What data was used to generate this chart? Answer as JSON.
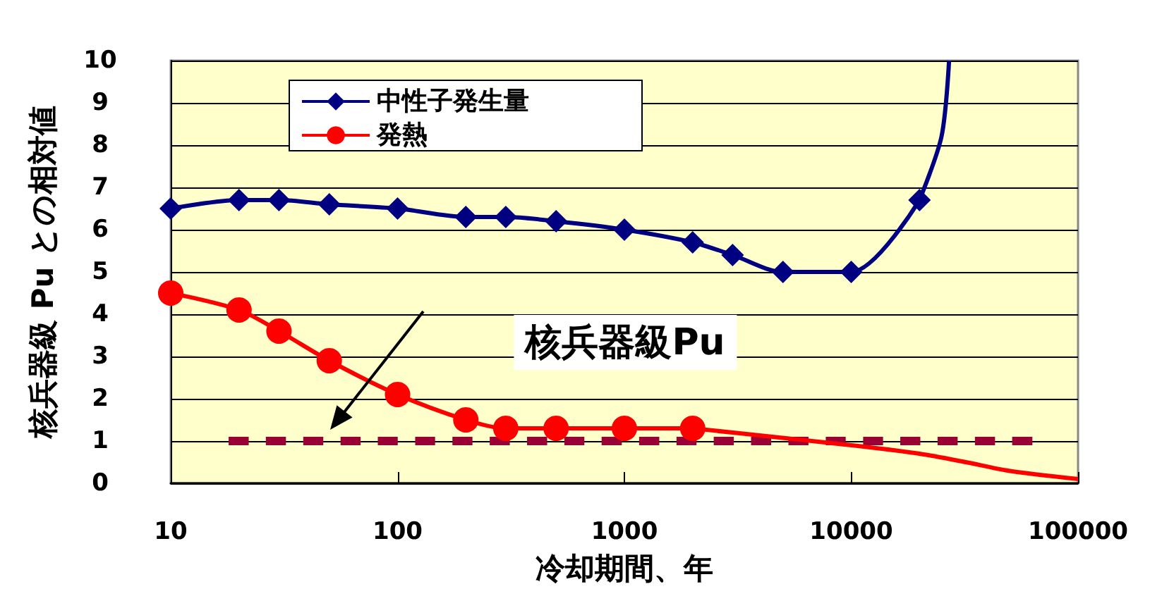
{
  "chart_data": {
    "type": "line",
    "xlabel": "冷却期間、年",
    "ylabel": "核兵器級 Pu との相対値",
    "log": "x",
    "xlim": [
      10,
      100000
    ],
    "xticks": [
      10,
      100,
      1000,
      10000,
      100000
    ],
    "ylim": [
      0,
      10
    ],
    "yticks": [
      0,
      1,
      2,
      3,
      4,
      5,
      6,
      7,
      8,
      9,
      10
    ],
    "grid": "y",
    "legend": "top",
    "series": [
      {
        "name": "中性子発生量",
        "color": "#000080",
        "marker": "diamond",
        "x": [
          10,
          20,
          30,
          50,
          100,
          200,
          300,
          500,
          1000,
          2000,
          3000,
          5000,
          10000,
          20000
        ],
        "values": [
          6.5,
          6.7,
          6.7,
          6.6,
          6.5,
          6.3,
          6.3,
          6.2,
          6.0,
          5.7,
          5.4,
          5.0,
          5.0,
          6.7
        ]
      },
      {
        "color": "#000080",
        "marker": "none",
        "x": [
          20000,
          25000,
          27000
        ],
        "values": [
          6.7,
          8.2,
          10
        ]
      },
      {
        "name": "発熱",
        "color": "#ff0000",
        "marker": "circle",
        "x": [
          10,
          20,
          30,
          50,
          100,
          200,
          300,
          500,
          1000,
          2000
        ],
        "values": [
          4.5,
          4.1,
          3.6,
          2.9,
          2.1,
          1.5,
          1.3,
          1.3,
          1.3,
          1.3
        ]
      },
      {
        "color": "#ff0000",
        "marker": "none",
        "x": [
          2000,
          4500,
          10000,
          20000,
          32000,
          49000,
          100000
        ],
        "values": [
          1.3,
          1.1,
          0.9,
          0.7,
          0.5,
          0.3,
          0.1
        ]
      },
      {
        "color": "#990033",
        "marker": "none",
        "line_style": "dashed",
        "x": [
          18,
          63000
        ],
        "values": [
          1,
          1
        ]
      }
    ],
    "annotations": [
      "核兵器級Pu"
    ]
  }
}
